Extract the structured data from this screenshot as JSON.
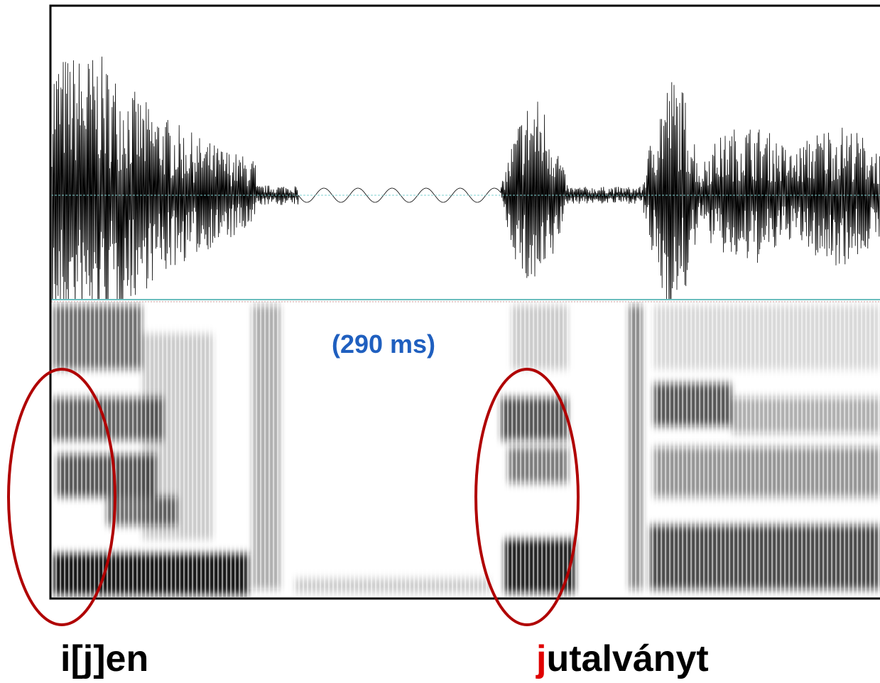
{
  "annotation": "(290 ms)",
  "words": [
    {
      "text": "i[j]en"
    },
    {
      "highlight": "j",
      "rest": "utalványt"
    }
  ]
}
